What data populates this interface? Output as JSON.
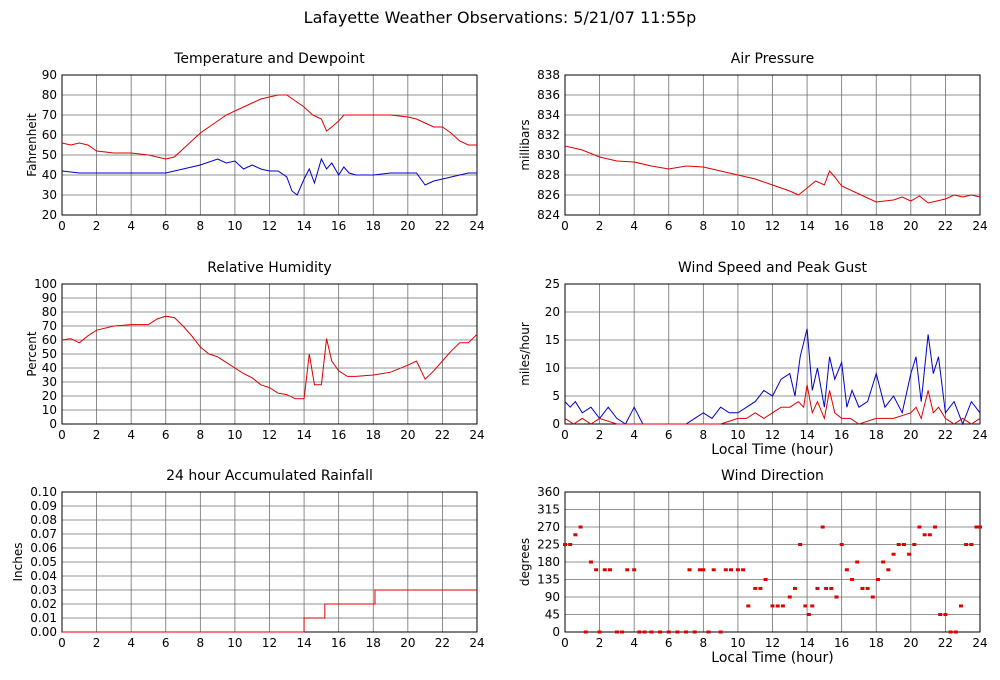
{
  "page": {
    "title": "Lafayette Weather Observations: 5/21/07 11:55p"
  },
  "colors": {
    "red": "#e00000",
    "blue": "#0000cc",
    "grid": "#6f6f6f"
  },
  "chart_data": [
    {
      "id": "temp",
      "type": "line",
      "title": "Temperature and Dewpoint",
      "xlabel": "",
      "ylabel": "Fahrenheit",
      "xlim": [
        0,
        24
      ],
      "ylim": [
        20,
        90
      ],
      "xticks": [
        0,
        2,
        4,
        6,
        8,
        10,
        12,
        14,
        16,
        18,
        20,
        22,
        24
      ],
      "yticks": [
        20,
        30,
        40,
        50,
        60,
        70,
        80,
        90
      ],
      "grid": true,
      "series": [
        {
          "color": "red",
          "x": [
            0,
            0.5,
            1,
            1.5,
            2,
            3,
            4,
            5,
            6,
            6.5,
            7,
            7.5,
            8,
            8.5,
            9,
            9.5,
            10,
            10.5,
            11,
            11.5,
            12,
            12.5,
            13,
            13.5,
            14,
            14.5,
            15,
            15.3,
            15.6,
            16,
            16.3,
            17,
            18,
            19,
            20,
            20.5,
            21,
            21.5,
            22,
            22.5,
            23,
            23.5,
            24
          ],
          "y": [
            56,
            55,
            56,
            55,
            52,
            51,
            51,
            50,
            48,
            49,
            53,
            57,
            61,
            64,
            67,
            70,
            72,
            74,
            76,
            78,
            79,
            80,
            80,
            77,
            74,
            70,
            68,
            62,
            64,
            67,
            70,
            70,
            70,
            70,
            69,
            68,
            66,
            64,
            64,
            61,
            57,
            55,
            55
          ]
        },
        {
          "color": "blue",
          "x": [
            0,
            1,
            2,
            3,
            4,
            5,
            6,
            7,
            8,
            9,
            9.5,
            10,
            10.5,
            11,
            11.5,
            12,
            12.5,
            13,
            13.3,
            13.6,
            14,
            14.3,
            14.6,
            15,
            15.3,
            15.6,
            16,
            16.3,
            16.6,
            17,
            18,
            19,
            20,
            20.5,
            21,
            21.5,
            22,
            22.5,
            23,
            23.5,
            24
          ],
          "y": [
            42,
            41,
            41,
            41,
            41,
            41,
            41,
            43,
            45,
            48,
            46,
            47,
            43,
            45,
            43,
            42,
            42,
            39,
            32,
            30,
            38,
            43,
            36,
            48,
            43,
            46,
            40,
            44,
            41,
            40,
            40,
            41,
            41,
            41,
            35,
            37,
            38,
            39,
            40,
            41,
            41
          ]
        }
      ]
    },
    {
      "id": "pressure",
      "type": "line",
      "title": "Air Pressure",
      "xlabel": "",
      "ylabel": "millibars",
      "xlim": [
        0,
        24
      ],
      "ylim": [
        824,
        838
      ],
      "xticks": [
        0,
        2,
        4,
        6,
        8,
        10,
        12,
        14,
        16,
        18,
        20,
        22,
        24
      ],
      "yticks": [
        824,
        826,
        828,
        830,
        832,
        834,
        836,
        838
      ],
      "grid": true,
      "series": [
        {
          "color": "red",
          "x": [
            0,
            1,
            2,
            3,
            4,
            5,
            6,
            7,
            8,
            9,
            10,
            11,
            12,
            13,
            13.5,
            14,
            14.5,
            15,
            15.3,
            15.6,
            16,
            17,
            18,
            19,
            19.5,
            20,
            20.5,
            21,
            22,
            22.5,
            23,
            23.5,
            24
          ],
          "y": [
            830.9,
            830.5,
            829.8,
            829.4,
            829.3,
            828.9,
            828.6,
            828.9,
            828.8,
            828.4,
            828.0,
            827.6,
            827.0,
            826.4,
            826.0,
            826.7,
            827.4,
            827.0,
            828.4,
            827.8,
            826.9,
            826.1,
            825.3,
            825.5,
            825.8,
            825.4,
            825.9,
            825.2,
            825.6,
            826.0,
            825.8,
            826.0,
            825.8
          ]
        }
      ]
    },
    {
      "id": "humidity",
      "type": "line",
      "title": "Relative Humidity",
      "xlabel": "",
      "ylabel": "Percent",
      "xlim": [
        0,
        24
      ],
      "ylim": [
        0,
        100
      ],
      "xticks": [
        0,
        2,
        4,
        6,
        8,
        10,
        12,
        14,
        16,
        18,
        20,
        22,
        24
      ],
      "yticks": [
        0,
        10,
        20,
        30,
        40,
        50,
        60,
        70,
        80,
        90,
        100
      ],
      "grid": true,
      "series": [
        {
          "color": "red",
          "x": [
            0,
            0.5,
            1,
            1.5,
            2,
            3,
            4,
            5,
            5.5,
            6,
            6.5,
            7,
            7.5,
            8,
            8.5,
            9,
            9.5,
            10,
            10.5,
            11,
            11.5,
            12,
            12.5,
            13,
            13.5,
            14,
            14.3,
            14.6,
            15,
            15.3,
            15.6,
            16,
            16.5,
            17,
            18,
            19,
            20,
            20.5,
            21,
            21.5,
            22,
            22.5,
            23,
            23.5,
            24
          ],
          "y": [
            60,
            61,
            58,
            63,
            67,
            70,
            71,
            71,
            75,
            77,
            76,
            70,
            63,
            55,
            50,
            48,
            44,
            40,
            36,
            33,
            28,
            26,
            22,
            21,
            18,
            18,
            50,
            28,
            28,
            61,
            45,
            38,
            34,
            34,
            35,
            37,
            42,
            45,
            32,
            38,
            45,
            52,
            58,
            58,
            64
          ]
        }
      ]
    },
    {
      "id": "wind",
      "type": "line",
      "title": "Wind Speed and Peak Gust",
      "xlabel": "Local Time (hour)",
      "ylabel": "miles/hour",
      "xlim": [
        0,
        24
      ],
      "ylim": [
        0,
        25
      ],
      "xticks": [
        0,
        2,
        4,
        6,
        8,
        10,
        12,
        14,
        16,
        18,
        20,
        22,
        24
      ],
      "yticks": [
        0,
        5,
        10,
        15,
        20,
        25
      ],
      "grid": true,
      "series": [
        {
          "color": "blue",
          "x": [
            0,
            0.3,
            0.6,
            1,
            1.5,
            2,
            2.5,
            3,
            3.5,
            4,
            4.5,
            5,
            6,
            7,
            7.5,
            8,
            8.5,
            9,
            9.5,
            10,
            10.5,
            11,
            11.5,
            12,
            12.5,
            13,
            13.3,
            13.6,
            14,
            14.3,
            14.6,
            15,
            15.3,
            15.6,
            16,
            16.3,
            16.6,
            17,
            17.5,
            18,
            18.5,
            19,
            19.5,
            20,
            20.3,
            20.6,
            21,
            21.3,
            21.6,
            22,
            22.5,
            23,
            23.5,
            24
          ],
          "y": [
            4,
            3,
            4,
            2,
            3,
            1,
            3,
            1,
            0,
            3,
            0,
            0,
            0,
            0,
            1,
            2,
            1,
            3,
            2,
            2,
            3,
            4,
            6,
            5,
            8,
            9,
            5,
            12,
            17,
            6,
            10,
            3,
            12,
            8,
            11,
            3,
            6,
            3,
            4,
            9,
            3,
            5,
            2,
            9,
            12,
            4,
            16,
            9,
            12,
            2,
            4,
            0,
            4,
            2
          ]
        },
        {
          "color": "red",
          "x": [
            0,
            0.5,
            1,
            1.5,
            2,
            3,
            4,
            5,
            6,
            7,
            8,
            9,
            10,
            10.5,
            11,
            11.5,
            12,
            12.5,
            13,
            13.5,
            13.8,
            14,
            14.3,
            14.6,
            15,
            15.3,
            15.6,
            16,
            16.5,
            17,
            18,
            19,
            20,
            20.3,
            20.6,
            21,
            21.3,
            21.6,
            22,
            22.5,
            23,
            23.5,
            24
          ],
          "y": [
            1,
            0,
            1,
            0,
            1,
            0,
            0,
            0,
            0,
            0,
            0,
            0,
            1,
            1,
            2,
            1,
            2,
            3,
            3,
            4,
            3,
            7,
            2,
            4,
            1,
            6,
            2,
            1,
            1,
            0,
            1,
            1,
            2,
            3,
            1,
            6,
            2,
            3,
            1,
            0,
            1,
            0,
            1
          ]
        }
      ]
    },
    {
      "id": "rain",
      "type": "line",
      "title": "24 hour Accumulated Rainfall",
      "xlabel": "",
      "ylabel": "Inches",
      "xlim": [
        0,
        24
      ],
      "ylim": [
        0,
        0.1
      ],
      "xticks": [
        0,
        2,
        4,
        6,
        8,
        10,
        12,
        14,
        16,
        18,
        20,
        22,
        24
      ],
      "yticks": [
        "0.00",
        "0.01",
        "0.02",
        "0.03",
        "0.04",
        "0.05",
        "0.06",
        "0.07",
        "0.08",
        "0.09",
        "0.10"
      ],
      "grid": true,
      "series": [
        {
          "color": "red",
          "step": true,
          "x": [
            0,
            14,
            15.2,
            18.1,
            24
          ],
          "y": [
            0,
            0.01,
            0.02,
            0.03,
            0.03
          ]
        }
      ]
    },
    {
      "id": "winddir",
      "type": "scatter",
      "title": "Wind Direction",
      "xlabel": "Local Time (hour)",
      "ylabel": "degrees",
      "xlim": [
        0,
        24
      ],
      "ylim": [
        0,
        360
      ],
      "xticks": [
        0,
        2,
        4,
        6,
        8,
        10,
        12,
        14,
        16,
        18,
        20,
        22,
        24
      ],
      "yticks": [
        0,
        45,
        90,
        135,
        180,
        225,
        270,
        315,
        360
      ],
      "grid": true,
      "series": [
        {
          "color": "red",
          "x": [
            0,
            0.3,
            0.6,
            0.9,
            1.2,
            1.5,
            1.8,
            2.0,
            2.3,
            2.6,
            3.0,
            3.3,
            3.6,
            4.0,
            4.3,
            4.6,
            5,
            5.5,
            6,
            6.5,
            7,
            7.2,
            7.5,
            7.8,
            8.0,
            8.3,
            8.6,
            9.0,
            9.3,
            9.6,
            10,
            10.3,
            10.6,
            11,
            11.3,
            11.6,
            12,
            12.3,
            12.6,
            13,
            13.3,
            13.6,
            13.9,
            14.1,
            14.3,
            14.6,
            14.9,
            15.1,
            15.4,
            15.7,
            16,
            16.3,
            16.6,
            16.9,
            17.2,
            17.5,
            17.8,
            18.1,
            18.4,
            18.7,
            19,
            19.3,
            19.6,
            19.9,
            20.2,
            20.5,
            20.8,
            21.1,
            21.4,
            21.7,
            22.0,
            22.3,
            22.6,
            22.9,
            23.2,
            23.5,
            23.8,
            24
          ],
          "y": [
            225,
            225,
            250,
            270,
            0,
            180,
            160,
            0,
            160,
            160,
            0,
            0,
            160,
            160,
            0,
            0,
            0,
            0,
            0,
            0,
            0,
            160,
            0,
            160,
            160,
            0,
            160,
            0,
            160,
            160,
            160,
            160,
            67,
            112,
            112,
            135,
            67,
            67,
            67,
            90,
            112,
            225,
            67,
            45,
            67,
            112,
            270,
            112,
            112,
            90,
            225,
            160,
            135,
            180,
            112,
            112,
            90,
            135,
            180,
            160,
            200,
            225,
            225,
            200,
            225,
            270,
            250,
            250,
            270,
            45,
            45,
            0,
            0,
            67,
            225,
            225,
            270,
            270
          ]
        }
      ]
    }
  ]
}
